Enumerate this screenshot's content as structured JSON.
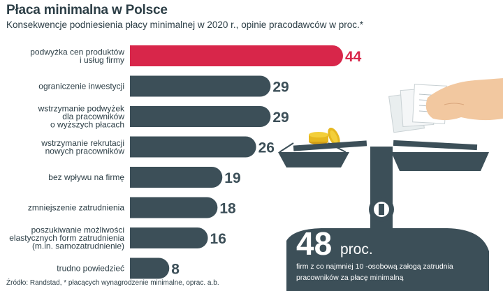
{
  "title": "Płaca minimalna w Polsce",
  "subtitle": "Konsekwencje podniesienia płacy minimalnej w 2020 r., opinie pracodawców w proc.*",
  "source": "Źródło: Randstad, * płacących wynagrodzenie minimalne, oprac. a.b.",
  "highlight": {
    "number": "48",
    "unit": "proc.",
    "description": "firm z co najmniej 10 -osobową załogą zatrudnia pracowników za płacę minimalną"
  },
  "colors": {
    "bar": "#3c4f58",
    "bar_highlight": "#d8264a",
    "text": "#2c3e46",
    "illustration": "#3c4f58"
  },
  "chart_data": {
    "type": "bar",
    "orientation": "horizontal",
    "categories": [
      [
        "podwyżka cen produktów",
        "i usług firmy"
      ],
      [
        "ograniczenie inwestycji"
      ],
      [
        "wstrzymanie podwyżek",
        "dla pracowników",
        "o wyższych płacach"
      ],
      [
        "wstrzymanie rekrutacji",
        "nowych pracowników"
      ],
      [
        "bez wpływu na firmę"
      ],
      [
        "zmniejszenie zatrudnienia"
      ],
      [
        "poszukiwanie możliwości",
        "elastycznych form zatrudnienia",
        "(m.in. samozatrudnienie)"
      ],
      [
        "trudno powiedzieć"
      ]
    ],
    "values": [
      44,
      29,
      29,
      26,
      19,
      18,
      16,
      8
    ],
    "value_labels": [
      "44",
      "29",
      "29",
      "26",
      "19",
      "18",
      "16",
      "8"
    ],
    "highlight_index": 0,
    "xlim": [
      0,
      44
    ],
    "grid": false,
    "title": "Płaca minimalna w Polsce",
    "xlabel": "",
    "ylabel": ""
  }
}
